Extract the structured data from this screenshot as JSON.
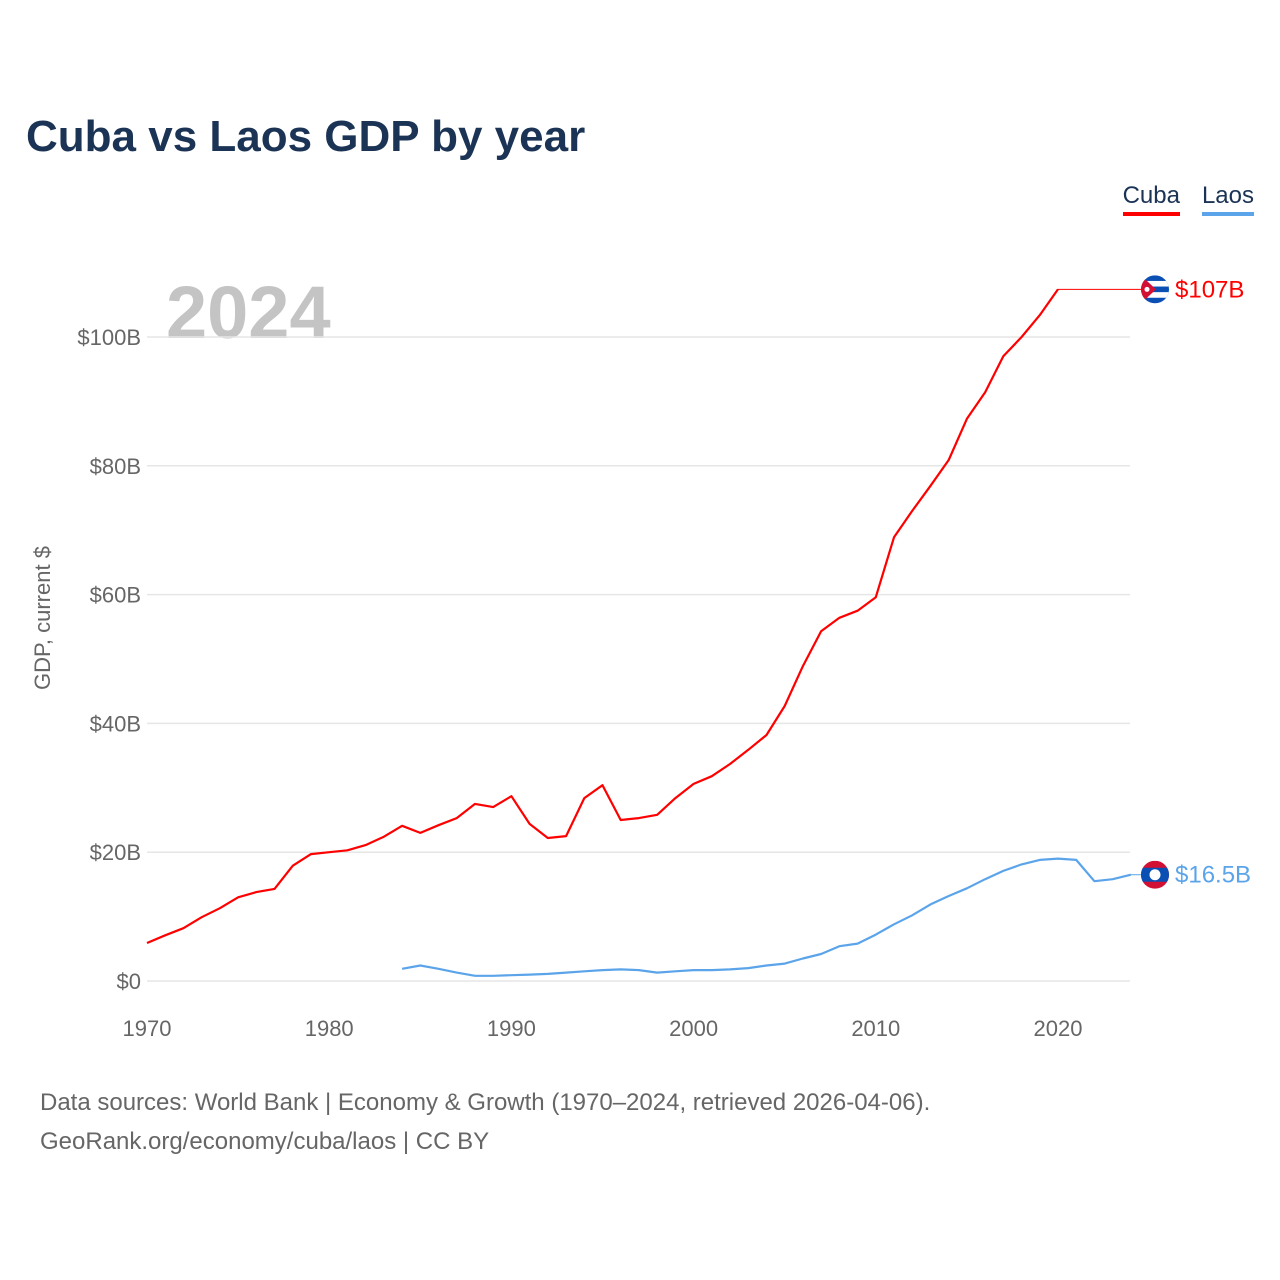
{
  "chart_data": {
    "type": "line",
    "title": "Cuba vs Laos GDP by year",
    "ylabel": "GDP, current $",
    "xlabel": "",
    "year_watermark": "2024",
    "xlim": [
      1970,
      2024
    ],
    "ylim": [
      0,
      110
    ],
    "x_ticks": [
      1970,
      1980,
      1990,
      2000,
      2010,
      2020
    ],
    "x_tick_labels": [
      "1970",
      "1980",
      "1990",
      "2000",
      "2010",
      "2020"
    ],
    "y_ticks": [
      0,
      20,
      40,
      60,
      80,
      100
    ],
    "y_tick_labels": [
      "$0",
      "$20B",
      "$40B",
      "$60B",
      "$80B",
      "$100B"
    ],
    "grid": true,
    "legend_position": "top-right",
    "series": [
      {
        "name": "Cuba",
        "color": "#ff0000",
        "end_label": "$107B",
        "end_value": 107.4,
        "flag": "cuba-flag",
        "x": [
          1970,
          1971,
          1972,
          1973,
          1974,
          1975,
          1976,
          1977,
          1978,
          1979,
          1980,
          1981,
          1982,
          1983,
          1984,
          1985,
          1986,
          1987,
          1988,
          1989,
          1990,
          1991,
          1992,
          1993,
          1994,
          1995,
          1996,
          1997,
          1998,
          1999,
          2000,
          2001,
          2002,
          2003,
          2004,
          2005,
          2006,
          2007,
          2008,
          2009,
          2010,
          2011,
          2012,
          2013,
          2014,
          2015,
          2016,
          2017,
          2018,
          2019,
          2020
        ],
        "values": [
          5.9,
          7.1,
          8.2,
          9.9,
          11.3,
          13.0,
          13.8,
          14.3,
          17.9,
          19.7,
          20.0,
          20.3,
          21.1,
          22.4,
          24.1,
          23.0,
          24.2,
          25.3,
          27.5,
          27.0,
          28.7,
          24.4,
          22.2,
          22.5,
          28.4,
          30.4,
          25.0,
          25.3,
          25.8,
          28.4,
          30.6,
          31.8,
          33.7,
          35.9,
          38.2,
          42.7,
          48.9,
          54.3,
          56.4,
          57.5,
          59.6,
          68.9,
          73.0,
          76.9,
          80.9,
          87.3,
          91.4,
          97.0,
          100.0,
          103.4,
          107.4
        ]
      },
      {
        "name": "Laos",
        "color": "#5ba4ea",
        "end_label": "$16.5B",
        "end_value": 16.5,
        "flag": "laos-flag",
        "x": [
          1984,
          1985,
          1986,
          1987,
          1988,
          1989,
          1990,
          1991,
          1992,
          1993,
          1994,
          1995,
          1996,
          1997,
          1998,
          1999,
          2000,
          2001,
          2002,
          2003,
          2004,
          2005,
          2006,
          2007,
          2008,
          2009,
          2010,
          2011,
          2012,
          2013,
          2014,
          2015,
          2016,
          2017,
          2018,
          2019,
          2020,
          2021,
          2022,
          2023,
          2024
        ],
        "values": [
          1.9,
          2.4,
          1.9,
          1.3,
          0.8,
          0.8,
          0.9,
          1.0,
          1.1,
          1.3,
          1.5,
          1.7,
          1.8,
          1.7,
          1.3,
          1.5,
          1.7,
          1.7,
          1.8,
          2.0,
          2.4,
          2.7,
          3.5,
          4.2,
          5.4,
          5.8,
          7.2,
          8.8,
          10.2,
          11.9,
          13.2,
          14.4,
          15.8,
          17.1,
          18.1,
          18.8,
          19.0,
          18.8,
          15.5,
          15.8,
          16.5
        ]
      }
    ]
  },
  "footer": {
    "sources": "Data sources: World Bank | Economy & Growth (1970–2024, retrieved 2026-04-06).",
    "link": "GeoRank.org/economy/cuba/laos | CC BY"
  }
}
